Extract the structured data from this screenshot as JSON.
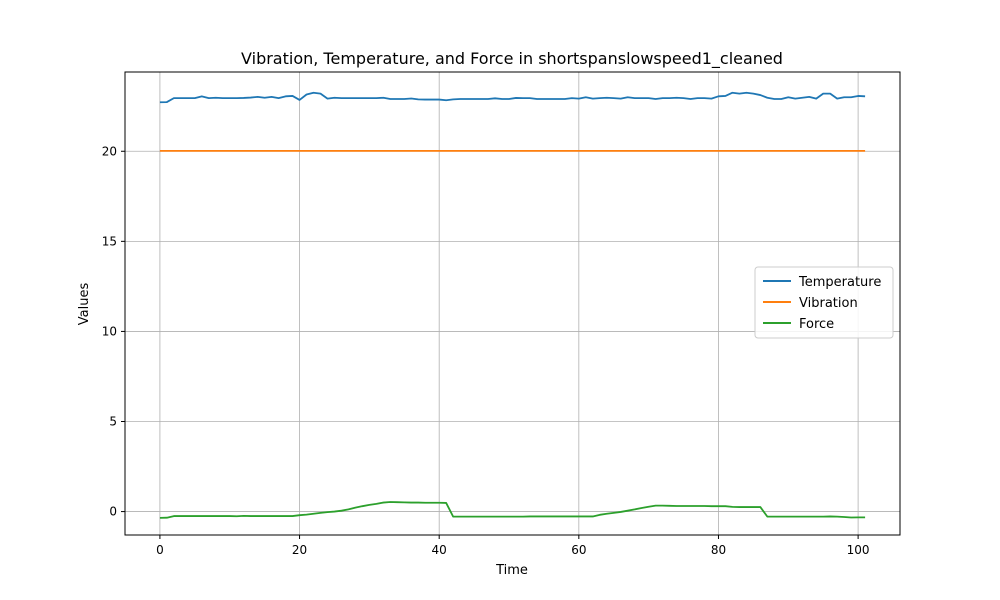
{
  "chart_data": {
    "type": "line",
    "title": "Vibration, Temperature, and Force in shortspanslowspeed1_cleaned",
    "xlabel": "Time",
    "ylabel": "Values",
    "xlim": [
      -5,
      106
    ],
    "ylim": [
      -1.3,
      24.4
    ],
    "xticks": [
      0,
      20,
      40,
      60,
      80,
      100
    ],
    "yticks": [
      0,
      5,
      10,
      15,
      20
    ],
    "grid": true,
    "legend_position": "center-right",
    "series": [
      {
        "name": "Temperature",
        "color": "#1f77b4",
        "points": [
          [
            0,
            22.72
          ],
          [
            1,
            22.73
          ],
          [
            2,
            22.95
          ],
          [
            3,
            22.95
          ],
          [
            4,
            22.95
          ],
          [
            5,
            22.95
          ],
          [
            6,
            23.05
          ],
          [
            7,
            22.95
          ],
          [
            8,
            22.97
          ],
          [
            9,
            22.95
          ],
          [
            10,
            22.95
          ],
          [
            11,
            22.95
          ],
          [
            12,
            22.96
          ],
          [
            13,
            22.98
          ],
          [
            14,
            23.02
          ],
          [
            15,
            22.97
          ],
          [
            16,
            23.02
          ],
          [
            17,
            22.95
          ],
          [
            18,
            23.05
          ],
          [
            19,
            23.07
          ],
          [
            20,
            22.85
          ],
          [
            21,
            23.15
          ],
          [
            22,
            23.25
          ],
          [
            23,
            23.2
          ],
          [
            24,
            22.92
          ],
          [
            25,
            22.97
          ],
          [
            26,
            22.95
          ],
          [
            27,
            22.95
          ],
          [
            28,
            22.95
          ],
          [
            29,
            22.95
          ],
          [
            30,
            22.95
          ],
          [
            31,
            22.95
          ],
          [
            32,
            22.97
          ],
          [
            33,
            22.9
          ],
          [
            34,
            22.9
          ],
          [
            35,
            22.9
          ],
          [
            36,
            22.93
          ],
          [
            37,
            22.88
          ],
          [
            38,
            22.87
          ],
          [
            39,
            22.87
          ],
          [
            40,
            22.87
          ],
          [
            41,
            22.83
          ],
          [
            42,
            22.88
          ],
          [
            43,
            22.9
          ],
          [
            44,
            22.9
          ],
          [
            45,
            22.9
          ],
          [
            46,
            22.9
          ],
          [
            47,
            22.9
          ],
          [
            48,
            22.94
          ],
          [
            49,
            22.9
          ],
          [
            50,
            22.9
          ],
          [
            51,
            22.96
          ],
          [
            52,
            22.95
          ],
          [
            53,
            22.95
          ],
          [
            54,
            22.9
          ],
          [
            55,
            22.9
          ],
          [
            56,
            22.9
          ],
          [
            57,
            22.9
          ],
          [
            58,
            22.9
          ],
          [
            59,
            22.95
          ],
          [
            60,
            22.92
          ],
          [
            61,
            23.0
          ],
          [
            62,
            22.92
          ],
          [
            63,
            22.95
          ],
          [
            64,
            22.97
          ],
          [
            65,
            22.95
          ],
          [
            66,
            22.92
          ],
          [
            67,
            23.0
          ],
          [
            68,
            22.95
          ],
          [
            69,
            22.95
          ],
          [
            70,
            22.95
          ],
          [
            71,
            22.9
          ],
          [
            72,
            22.95
          ],
          [
            73,
            22.95
          ],
          [
            74,
            22.97
          ],
          [
            75,
            22.95
          ],
          [
            76,
            22.9
          ],
          [
            77,
            22.95
          ],
          [
            78,
            22.95
          ],
          [
            79,
            22.92
          ],
          [
            80,
            23.05
          ],
          [
            81,
            23.07
          ],
          [
            82,
            23.25
          ],
          [
            83,
            23.2
          ],
          [
            84,
            23.25
          ],
          [
            85,
            23.2
          ],
          [
            86,
            23.12
          ],
          [
            87,
            22.97
          ],
          [
            88,
            22.9
          ],
          [
            89,
            22.9
          ],
          [
            90,
            23.0
          ],
          [
            91,
            22.92
          ],
          [
            92,
            22.97
          ],
          [
            93,
            23.02
          ],
          [
            94,
            22.92
          ],
          [
            95,
            23.2
          ],
          [
            96,
            23.2
          ],
          [
            97,
            22.92
          ],
          [
            98,
            23.0
          ],
          [
            99,
            23.0
          ],
          [
            100,
            23.07
          ],
          [
            101,
            23.05
          ]
        ]
      },
      {
        "name": "Vibration",
        "color": "#ff7f0e",
        "points": [
          [
            0,
            20.02
          ],
          [
            101,
            20.02
          ]
        ]
      },
      {
        "name": "Force",
        "color": "#2ca02c",
        "points": [
          [
            0,
            -0.35
          ],
          [
            1,
            -0.34
          ],
          [
            2,
            -0.25
          ],
          [
            3,
            -0.25
          ],
          [
            4,
            -0.25
          ],
          [
            5,
            -0.25
          ],
          [
            6,
            -0.25
          ],
          [
            7,
            -0.25
          ],
          [
            8,
            -0.25
          ],
          [
            9,
            -0.25
          ],
          [
            10,
            -0.25
          ],
          [
            11,
            -0.26
          ],
          [
            12,
            -0.24
          ],
          [
            13,
            -0.25
          ],
          [
            14,
            -0.25
          ],
          [
            15,
            -0.25
          ],
          [
            16,
            -0.25
          ],
          [
            17,
            -0.25
          ],
          [
            18,
            -0.25
          ],
          [
            19,
            -0.25
          ],
          [
            20,
            -0.2
          ],
          [
            21,
            -0.17
          ],
          [
            22,
            -0.12
          ],
          [
            23,
            -0.07
          ],
          [
            24,
            -0.03
          ],
          [
            25,
            0.0
          ],
          [
            26,
            0.05
          ],
          [
            27,
            0.12
          ],
          [
            28,
            0.22
          ],
          [
            29,
            0.3
          ],
          [
            30,
            0.37
          ],
          [
            31,
            0.43
          ],
          [
            32,
            0.5
          ],
          [
            33,
            0.53
          ],
          [
            34,
            0.52
          ],
          [
            35,
            0.51
          ],
          [
            36,
            0.5
          ],
          [
            37,
            0.5
          ],
          [
            38,
            0.49
          ],
          [
            39,
            0.49
          ],
          [
            40,
            0.49
          ],
          [
            41,
            0.48
          ],
          [
            42,
            -0.28
          ],
          [
            43,
            -0.28
          ],
          [
            44,
            -0.28
          ],
          [
            45,
            -0.28
          ],
          [
            46,
            -0.28
          ],
          [
            47,
            -0.28
          ],
          [
            48,
            -0.28
          ],
          [
            49,
            -0.28
          ],
          [
            50,
            -0.28
          ],
          [
            51,
            -0.28
          ],
          [
            52,
            -0.28
          ],
          [
            53,
            -0.27
          ],
          [
            54,
            -0.27
          ],
          [
            55,
            -0.27
          ],
          [
            56,
            -0.27
          ],
          [
            57,
            -0.27
          ],
          [
            58,
            -0.27
          ],
          [
            59,
            -0.27
          ],
          [
            60,
            -0.27
          ],
          [
            61,
            -0.27
          ],
          [
            62,
            -0.27
          ],
          [
            63,
            -0.18
          ],
          [
            64,
            -0.12
          ],
          [
            65,
            -0.07
          ],
          [
            66,
            -0.02
          ],
          [
            67,
            0.05
          ],
          [
            68,
            0.12
          ],
          [
            69,
            0.2
          ],
          [
            70,
            0.27
          ],
          [
            71,
            0.33
          ],
          [
            72,
            0.33
          ],
          [
            73,
            0.32
          ],
          [
            74,
            0.31
          ],
          [
            75,
            0.31
          ],
          [
            76,
            0.31
          ],
          [
            77,
            0.31
          ],
          [
            78,
            0.31
          ],
          [
            79,
            0.3
          ],
          [
            80,
            0.3
          ],
          [
            81,
            0.3
          ],
          [
            82,
            0.26
          ],
          [
            83,
            0.25
          ],
          [
            84,
            0.25
          ],
          [
            85,
            0.25
          ],
          [
            86,
            0.25
          ],
          [
            87,
            -0.28
          ],
          [
            88,
            -0.28
          ],
          [
            89,
            -0.28
          ],
          [
            90,
            -0.28
          ],
          [
            91,
            -0.28
          ],
          [
            92,
            -0.28
          ],
          [
            93,
            -0.28
          ],
          [
            94,
            -0.28
          ],
          [
            95,
            -0.28
          ],
          [
            96,
            -0.27
          ],
          [
            97,
            -0.28
          ],
          [
            98,
            -0.3
          ],
          [
            99,
            -0.33
          ],
          [
            100,
            -0.32
          ],
          [
            101,
            -0.32
          ]
        ]
      }
    ]
  }
}
